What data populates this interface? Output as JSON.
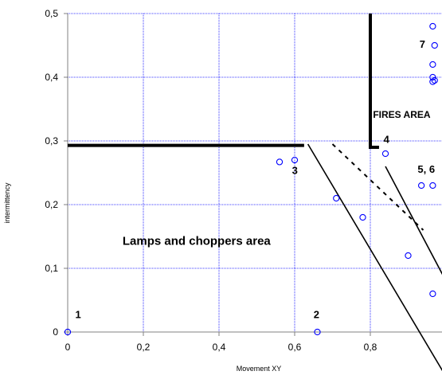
{
  "chart_data": {
    "type": "scatter",
    "title": "",
    "xlabel": "Movement XY",
    "ylabel": "intermittency",
    "xlim": [
      0,
      1.0
    ],
    "ylim": [
      0,
      0.5
    ],
    "x_ticks": [
      "0",
      "0,2",
      "0,4",
      "0,6",
      "0,8"
    ],
    "y_ticks": [
      "0",
      "0,1",
      "0,2",
      "0,3",
      "0,4",
      "0,5"
    ],
    "x_tick_values": [
      0,
      0.2,
      0.4,
      0.6,
      0.8
    ],
    "y_tick_values": [
      0,
      0.1,
      0.2,
      0.3,
      0.4,
      0.5
    ],
    "grid": true,
    "grid_color": "#0000ff",
    "marker_color": "#0000ff",
    "series": [
      {
        "marker": "open-circle",
        "points": [
          {
            "x": 0.0,
            "y": 0.0
          },
          {
            "x": 0.66,
            "y": 0.0
          },
          {
            "x": 0.56,
            "y": 0.267
          },
          {
            "x": 0.6,
            "y": 0.27
          },
          {
            "x": 0.71,
            "y": 0.21
          },
          {
            "x": 0.78,
            "y": 0.18
          },
          {
            "x": 0.84,
            "y": 0.28
          },
          {
            "x": 0.9,
            "y": 0.12
          },
          {
            "x": 0.935,
            "y": 0.23
          },
          {
            "x": 0.965,
            "y": 0.23
          },
          {
            "x": 0.965,
            "y": 0.06
          },
          {
            "x": 0.965,
            "y": 0.48
          },
          {
            "x": 0.97,
            "y": 0.45
          },
          {
            "x": 0.965,
            "y": 0.42
          },
          {
            "x": 0.965,
            "y": 0.4
          },
          {
            "x": 0.965,
            "y": 0.393
          },
          {
            "x": 0.97,
            "y": 0.395
          }
        ]
      }
    ],
    "region_lines": [
      {
        "style": "thick",
        "points": [
          [
            0,
            0.293
          ],
          [
            0.625,
            0.293
          ]
        ]
      },
      {
        "style": "thick",
        "points": [
          [
            0.8,
            0.5
          ],
          [
            0.8,
            0.29
          ],
          [
            0.823,
            0.29
          ]
        ]
      },
      {
        "style": "solid",
        "points": [
          [
            0.635,
            0.295
          ],
          [
            1.0,
            -0.07
          ]
        ]
      },
      {
        "style": "solid",
        "points": [
          [
            0.84,
            0.26
          ],
          [
            1.0,
            0.08
          ]
        ]
      },
      {
        "style": "dashed",
        "points": [
          [
            0.7,
            0.295
          ],
          [
            0.94,
            0.16
          ]
        ]
      }
    ],
    "annotations": [
      {
        "text": "1",
        "x": 0.02,
        "y": 0.022,
        "size": "small"
      },
      {
        "text": "2",
        "x": 0.65,
        "y": 0.022,
        "size": "small"
      },
      {
        "text": "3",
        "x": 0.593,
        "y": 0.248,
        "size": "small"
      },
      {
        "text": "4",
        "x": 0.835,
        "y": 0.297,
        "size": "small"
      },
      {
        "text": "5, 6",
        "x": 0.925,
        "y": 0.25,
        "size": "small"
      },
      {
        "text": "7",
        "x": 0.93,
        "y": 0.446,
        "size": "small"
      },
      {
        "text": "FIRES AREA",
        "x": 0.807,
        "y": 0.336,
        "size": "medium"
      },
      {
        "text": "Lamps and choppers area",
        "x": 0.145,
        "y": 0.137,
        "size": "large"
      }
    ]
  }
}
